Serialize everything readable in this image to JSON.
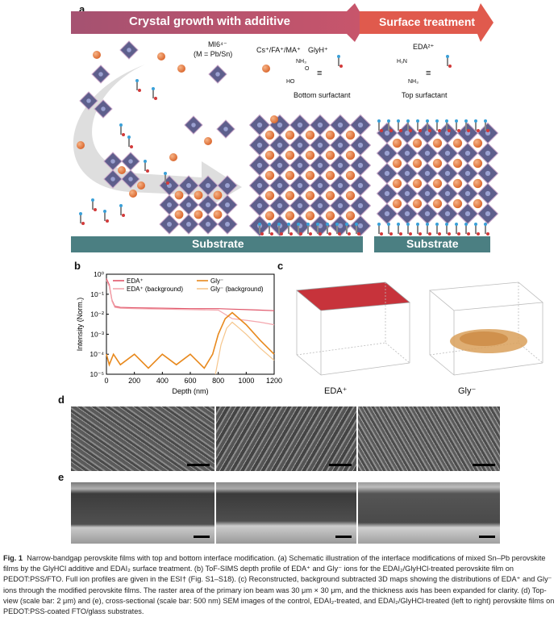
{
  "panels": {
    "a": "a",
    "b": "b",
    "c": "c",
    "d": "d",
    "e": "e"
  },
  "panel_a": {
    "arrow_left": "Crystal growth with additive",
    "arrow_right": "Surface treatment",
    "ml6": "MI6⁴⁻",
    "ml6_sub": "(M = Pb/Sn)",
    "cations": "Cs⁺/FA⁺/MA⁺",
    "glyh": "GlyH⁺",
    "bottom_surfactant": "Bottom surfactant",
    "eda": "EDA²⁺",
    "top_surfactant": "Top surfactant",
    "substrate_left": "Substrate",
    "substrate_right": "Substrate",
    "equiv": "≡",
    "nh3": "NH₃",
    "ho": "HO",
    "o": "O",
    "h3n": "H₃N",
    "nh3b": "NH₃",
    "plus": "+"
  },
  "panel_c": {
    "label_left": "EDA⁺",
    "label_right": "Gly⁻"
  },
  "chart_data": {
    "type": "line",
    "xlabel": "Depth (nm)",
    "ylabel": "Intensity (Norm.)",
    "xlim": [
      0,
      1200
    ],
    "ylim_log10": [
      -5,
      0
    ],
    "x_ticks": [
      "0",
      "200",
      "400",
      "600",
      "800",
      "1000",
      "1200"
    ],
    "y_ticks": [
      "10⁰",
      "10⁻¹",
      "10⁻²",
      "10⁻³",
      "10⁻⁴",
      "10⁻⁵"
    ],
    "log_scale_y": true,
    "legend_placement": "top",
    "series": [
      {
        "name": "EDA⁺",
        "color": "#e0566a",
        "x": [
          0,
          20,
          40,
          60,
          100,
          200,
          400,
          600,
          800,
          900,
          1000,
          1100,
          1200
        ],
        "y": [
          0.6,
          0.3,
          0.05,
          0.025,
          0.022,
          0.021,
          0.02,
          0.019,
          0.019,
          0.018,
          0.017,
          0.016,
          0.015
        ]
      },
      {
        "name": "EDA⁺ (background)",
        "color": "#f4a7ae",
        "x": [
          0,
          20,
          40,
          60,
          100,
          200,
          400,
          600,
          800,
          900,
          1000,
          1100,
          1200
        ],
        "y": [
          0.5,
          0.25,
          0.045,
          0.022,
          0.02,
          0.019,
          0.018,
          0.017,
          0.016,
          0.006,
          0.005,
          0.004,
          0.003
        ]
      },
      {
        "name": "Gly⁻",
        "color": "#e8891d",
        "x": [
          0,
          20,
          50,
          100,
          200,
          300,
          400,
          500,
          600,
          700,
          760,
          800,
          850,
          900,
          950,
          1000,
          1100,
          1200
        ],
        "y": [
          0.0001,
          3e-05,
          0.0001,
          3e-05,
          0.0001,
          2e-05,
          0.0001,
          3e-05,
          0.0001,
          2e-05,
          0.0001,
          0.001,
          0.006,
          0.012,
          0.006,
          0.003,
          0.0005,
          0.0001
        ]
      },
      {
        "name": "Gly⁻ (background)",
        "color": "#f6c68c",
        "x": [
          780,
          820,
          860,
          900,
          950,
          1000,
          1100,
          1200
        ],
        "y": [
          1e-05,
          0.0003,
          0.002,
          0.004,
          0.002,
          0.001,
          0.0002,
          5e-05
        ]
      }
    ]
  },
  "caption": {
    "fig": "Fig. 1",
    "text": "Narrow-bandgap perovskite films with top and bottom interface modification. (a) Schematic illustration of the interface modifications of mixed Sn–Pb perovskite films by the GlyHCl additive and EDAI₂ surface treatment. (b) ToF-SIMS depth profile of EDA⁺ and Gly⁻ ions for the EDAI₂/GlyHCl-treated perovskite film on PEDOT:PSS/FTO. Full ion profiles are given in the ESI† (Fig. S1–S18). (c) Reconstructed, background subtracted 3D maps showing the distributions of EDA⁺ and Gly⁻ ions through the modified perovskite films. The raster area of the primary ion beam was 30 μm × 30 μm, and the thickness axis has been expanded for clarity. (d) Top-view (scale bar: 2 μm) and (e), cross-sectional (scale bar: 500 nm) SEM images of the control, EDAI₂-treated, and EDAI₂/GlyHCl-treated (left to right) perovskite films on PEDOT:PSS-coated FTO/glass substrates."
  },
  "colors": {
    "arrow_left": "#b4576d",
    "arrow_right": "#e0574d",
    "substrate": "#4b7f82",
    "octahedron": "#5e5f8c",
    "sphere": "#e47d3a"
  }
}
